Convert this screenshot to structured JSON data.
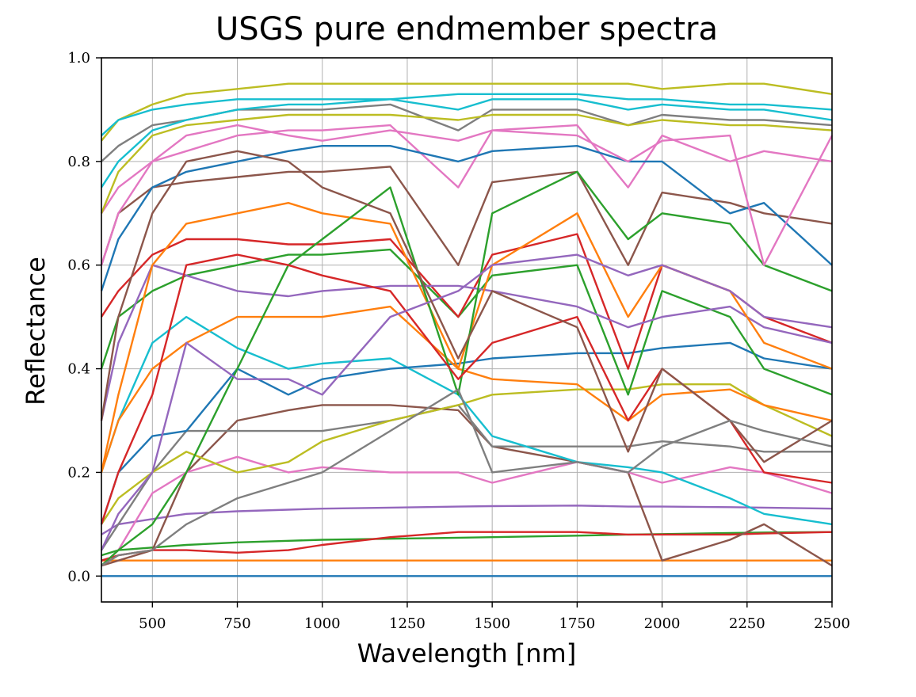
{
  "chart_data": {
    "type": "line",
    "title": "USGS pure endmember spectra",
    "xlabel": "Wavelength [nm]",
    "ylabel": "Reflectance",
    "xlim": [
      350,
      2500
    ],
    "ylim": [
      -0.05,
      1.0
    ],
    "xticks": [
      500,
      750,
      1000,
      1250,
      1500,
      1750,
      2000,
      2250,
      2500
    ],
    "yticks": [
      0.0,
      0.2,
      0.4,
      0.6,
      0.8,
      1.0
    ],
    "ytick_labels": [
      "0.0",
      "0.2",
      "0.4",
      "0.6",
      "0.8",
      "1.0"
    ],
    "grid": true,
    "legend": "none",
    "colors": [
      "#1f77b4",
      "#ff7f0e",
      "#2ca02c",
      "#d62728",
      "#9467bd",
      "#8c564b",
      "#e377c2",
      "#7f7f7f",
      "#bcbd22",
      "#17becf"
    ],
    "x": [
      350,
      400,
      500,
      600,
      750,
      900,
      1000,
      1200,
      1400,
      1500,
      1750,
      1900,
      2000,
      2200,
      2300,
      2500
    ],
    "series": [
      {
        "values": [
          0.0,
          0.0,
          0.0,
          0.0,
          0.0,
          0.0,
          0.0,
          0.0,
          0.0,
          0.0,
          0.0,
          0.0,
          0.0,
          0.0,
          0.0,
          0.0
        ]
      },
      {
        "values": [
          0.03,
          0.03,
          0.03,
          0.03,
          0.03,
          0.03,
          0.03,
          0.03,
          0.03,
          0.03,
          0.03,
          0.03,
          0.03,
          0.03,
          0.03,
          0.03
        ]
      },
      {
        "values": [
          0.04,
          0.05,
          0.055,
          0.06,
          0.065,
          0.068,
          0.07,
          0.072,
          0.074,
          0.075,
          0.078,
          0.08,
          0.081,
          0.083,
          0.084,
          0.085
        ]
      },
      {
        "values": [
          0.03,
          0.04,
          0.05,
          0.05,
          0.045,
          0.05,
          0.06,
          0.075,
          0.085,
          0.085,
          0.085,
          0.08,
          0.08,
          0.08,
          0.082,
          0.085
        ]
      },
      {
        "values": [
          0.08,
          0.1,
          0.11,
          0.12,
          0.125,
          0.128,
          0.13,
          0.132,
          0.134,
          0.135,
          0.136,
          0.134,
          0.134,
          0.133,
          0.132,
          0.13
        ]
      },
      {
        "values": [
          0.02,
          0.03,
          0.05,
          0.2,
          0.3,
          0.32,
          0.33,
          0.33,
          0.32,
          0.25,
          0.22,
          0.2,
          0.03,
          0.07,
          0.1,
          0.02
        ]
      },
      {
        "values": [
          0.02,
          0.05,
          0.16,
          0.2,
          0.23,
          0.2,
          0.21,
          0.2,
          0.2,
          0.18,
          0.22,
          0.2,
          0.18,
          0.21,
          0.2,
          0.16
        ]
      },
      {
        "values": [
          0.05,
          0.1,
          0.2,
          0.28,
          0.28,
          0.28,
          0.28,
          0.3,
          0.33,
          0.25,
          0.25,
          0.25,
          0.26,
          0.25,
          0.24,
          0.24
        ]
      },
      {
        "values": [
          0.1,
          0.15,
          0.2,
          0.24,
          0.2,
          0.22,
          0.26,
          0.3,
          0.33,
          0.35,
          0.36,
          0.36,
          0.37,
          0.37,
          0.33,
          0.27
        ]
      },
      {
        "values": [
          0.2,
          0.3,
          0.45,
          0.5,
          0.44,
          0.4,
          0.41,
          0.42,
          0.35,
          0.27,
          0.22,
          0.21,
          0.2,
          0.15,
          0.12,
          0.1
        ]
      },
      {
        "values": [
          0.1,
          0.2,
          0.27,
          0.28,
          0.4,
          0.35,
          0.38,
          0.4,
          0.41,
          0.42,
          0.43,
          0.43,
          0.44,
          0.45,
          0.42,
          0.4
        ]
      },
      {
        "values": [
          0.2,
          0.3,
          0.4,
          0.45,
          0.5,
          0.5,
          0.5,
          0.52,
          0.4,
          0.38,
          0.37,
          0.3,
          0.35,
          0.36,
          0.33,
          0.3
        ]
      },
      {
        "values": [
          0.4,
          0.5,
          0.55,
          0.58,
          0.6,
          0.62,
          0.62,
          0.63,
          0.5,
          0.58,
          0.6,
          0.35,
          0.55,
          0.5,
          0.4,
          0.35
        ]
      },
      {
        "values": [
          0.5,
          0.55,
          0.62,
          0.65,
          0.65,
          0.64,
          0.64,
          0.65,
          0.5,
          0.62,
          0.66,
          0.4,
          0.6,
          0.55,
          0.5,
          0.45
        ]
      },
      {
        "values": [
          0.3,
          0.45,
          0.6,
          0.58,
          0.55,
          0.54,
          0.55,
          0.56,
          0.56,
          0.55,
          0.52,
          0.48,
          0.5,
          0.52,
          0.48,
          0.45
        ]
      },
      {
        "values": [
          0.6,
          0.7,
          0.75,
          0.76,
          0.77,
          0.78,
          0.78,
          0.79,
          0.6,
          0.76,
          0.78,
          0.6,
          0.74,
          0.72,
          0.7,
          0.68
        ]
      },
      {
        "values": [
          0.7,
          0.75,
          0.8,
          0.82,
          0.85,
          0.86,
          0.86,
          0.87,
          0.75,
          0.86,
          0.87,
          0.75,
          0.85,
          0.8,
          0.82,
          0.8
        ]
      },
      {
        "values": [
          0.8,
          0.83,
          0.87,
          0.88,
          0.9,
          0.9,
          0.9,
          0.91,
          0.86,
          0.9,
          0.9,
          0.87,
          0.89,
          0.88,
          0.88,
          0.87
        ]
      },
      {
        "values": [
          0.84,
          0.88,
          0.91,
          0.93,
          0.94,
          0.95,
          0.95,
          0.95,
          0.95,
          0.95,
          0.95,
          0.95,
          0.94,
          0.95,
          0.95,
          0.93
        ]
      },
      {
        "values": [
          0.85,
          0.88,
          0.9,
          0.91,
          0.92,
          0.92,
          0.92,
          0.92,
          0.9,
          0.92,
          0.92,
          0.9,
          0.91,
          0.9,
          0.9,
          0.88
        ]
      },
      {
        "values": [
          0.55,
          0.65,
          0.75,
          0.78,
          0.8,
          0.82,
          0.83,
          0.83,
          0.8,
          0.82,
          0.83,
          0.8,
          0.8,
          0.7,
          0.72,
          0.6
        ]
      },
      {
        "values": [
          0.2,
          0.35,
          0.6,
          0.68,
          0.7,
          0.72,
          0.7,
          0.68,
          0.4,
          0.6,
          0.7,
          0.5,
          0.6,
          0.55,
          0.45,
          0.4
        ]
      },
      {
        "values": [
          0.02,
          0.05,
          0.1,
          0.2,
          0.4,
          0.6,
          0.65,
          0.75,
          0.35,
          0.7,
          0.78,
          0.65,
          0.7,
          0.68,
          0.6,
          0.55
        ]
      },
      {
        "values": [
          0.1,
          0.2,
          0.35,
          0.6,
          0.62,
          0.6,
          0.58,
          0.55,
          0.38,
          0.45,
          0.5,
          0.3,
          0.4,
          0.3,
          0.2,
          0.18
        ]
      },
      {
        "values": [
          0.05,
          0.12,
          0.2,
          0.45,
          0.38,
          0.38,
          0.35,
          0.5,
          0.55,
          0.6,
          0.62,
          0.58,
          0.6,
          0.55,
          0.5,
          0.48
        ]
      },
      {
        "values": [
          0.3,
          0.5,
          0.7,
          0.8,
          0.82,
          0.8,
          0.75,
          0.7,
          0.42,
          0.55,
          0.48,
          0.24,
          0.4,
          0.3,
          0.22,
          0.3
        ]
      },
      {
        "values": [
          0.6,
          0.7,
          0.8,
          0.85,
          0.87,
          0.85,
          0.84,
          0.86,
          0.84,
          0.86,
          0.85,
          0.8,
          0.84,
          0.85,
          0.6,
          0.85
        ]
      },
      {
        "values": [
          0.02,
          0.04,
          0.05,
          0.1,
          0.15,
          0.18,
          0.2,
          0.28,
          0.36,
          0.2,
          0.22,
          0.2,
          0.25,
          0.3,
          0.28,
          0.25
        ]
      },
      {
        "values": [
          0.7,
          0.78,
          0.85,
          0.87,
          0.88,
          0.89,
          0.89,
          0.89,
          0.88,
          0.89,
          0.89,
          0.87,
          0.88,
          0.87,
          0.87,
          0.86
        ]
      },
      {
        "values": [
          0.75,
          0.8,
          0.86,
          0.88,
          0.9,
          0.91,
          0.91,
          0.92,
          0.93,
          0.93,
          0.93,
          0.92,
          0.92,
          0.91,
          0.91,
          0.9
        ]
      }
    ]
  }
}
